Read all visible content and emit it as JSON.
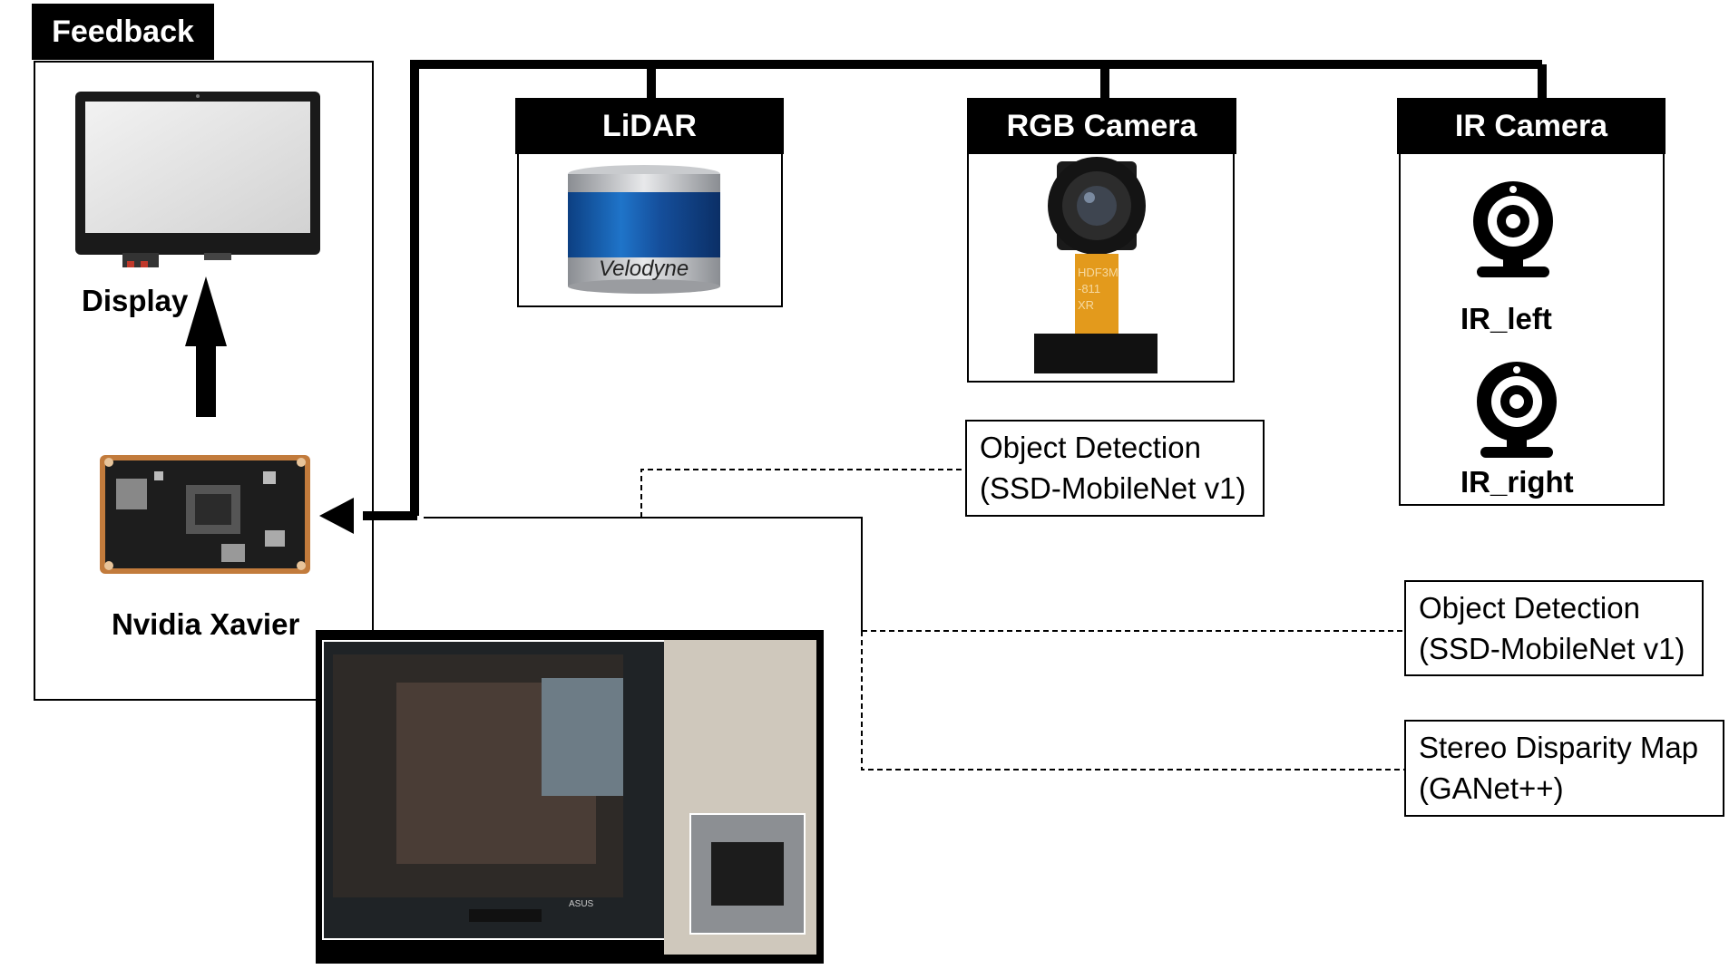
{
  "feedback": {
    "header": "Feedback",
    "display_label": "Display",
    "xavier_label": "Nvidia Xavier"
  },
  "sensors": {
    "lidar": {
      "header": "LiDAR",
      "brand": "Velodyne"
    },
    "rgb": {
      "header": "RGB Camera",
      "module_text": [
        "HDF3M",
        "-811",
        "XR"
      ]
    },
    "ir": {
      "header": "IR Camera",
      "left_label": "IR_left",
      "right_label": "IR_right"
    }
  },
  "outputs": {
    "rgb_detection": {
      "line1": "Object Detection",
      "line2": "(SSD-MobileNet v1)"
    },
    "ir_detection": {
      "line1": "Object Detection",
      "line2": "(SSD-MobileNet v1)"
    },
    "stereo": {
      "line1": "Stereo Disparity Map",
      "line2": "(GANet++)"
    }
  },
  "photo": {
    "monitor_brand": "ASUS"
  },
  "colors": {
    "lidar_blue": "#1b5fb0",
    "flex_orange": "#e39a1c",
    "pcb_copper": "#c27b3c",
    "line": "#000000"
  }
}
